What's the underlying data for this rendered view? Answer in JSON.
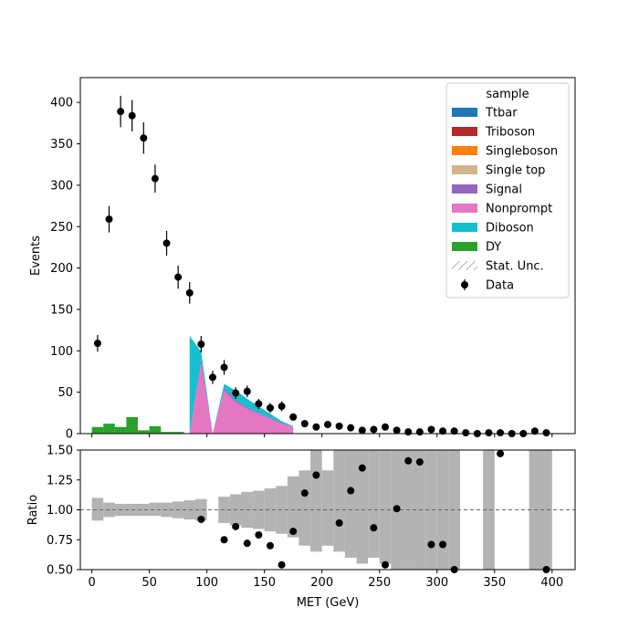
{
  "chart_data": [
    {
      "type": "bar",
      "ylabel": "Events",
      "ylim": [
        0,
        430
      ],
      "xlim": [
        -10,
        420
      ],
      "xticks": [
        0,
        50,
        100,
        150,
        200,
        250,
        300,
        350,
        400
      ],
      "yticks": [
        0,
        50,
        100,
        150,
        200,
        250,
        300,
        350,
        400
      ],
      "legend": {
        "title": "sample",
        "position": "top-right",
        "entries": [
          "Ttbar",
          "Triboson",
          "Singleboson",
          "Single top",
          "Signal",
          "Nonprompt",
          "Diboson",
          "DY",
          "Stat. Unc.",
          "Data"
        ]
      },
      "colors": {
        "Ttbar": "#1f77b4",
        "Triboson": "#b22a2a",
        "Singleboson": "#ff7f0e",
        "Single top": "#d2b48c",
        "Signal": "#9467bd",
        "Nonprompt": "#e377c2",
        "Diboson": "#17becf",
        "DY": "#2ca02c",
        "Data": "#000000",
        "Stat. Unc.": "#888888"
      },
      "dy_x": [
        5,
        15,
        25,
        35,
        45,
        55,
        65,
        75
      ],
      "dy_values": [
        8,
        12,
        8,
        20,
        4,
        9,
        2,
        2
      ],
      "stack_x": [
        85,
        95,
        105,
        115,
        125,
        135,
        145,
        155,
        165,
        175
      ],
      "stack_series": [
        {
          "name": "Nonprompt",
          "values": [
            0,
            85,
            0,
            52,
            38,
            30,
            24,
            18,
            12,
            8
          ]
        },
        {
          "name": "Signal",
          "values": [
            0,
            6,
            0,
            3,
            2,
            2,
            1,
            1,
            1,
            0
          ]
        },
        {
          "name": "Diboson",
          "values": [
            118,
            8,
            0,
            5,
            12,
            10,
            8,
            5,
            2,
            1
          ]
        }
      ],
      "data_points": {
        "x": [
          5,
          15,
          25,
          35,
          45,
          55,
          65,
          75,
          85,
          95,
          105,
          115,
          125,
          135,
          145,
          155,
          165,
          175,
          185,
          195,
          205,
          215,
          225,
          235,
          245,
          255,
          265,
          275,
          285,
          295,
          305,
          315,
          325,
          335,
          345,
          355,
          365,
          375,
          385,
          395
        ],
        "y": [
          109,
          259,
          389,
          384,
          357,
          308,
          230,
          189,
          170,
          108,
          68,
          80,
          49,
          51,
          36,
          31,
          33,
          20,
          12,
          8,
          11,
          9,
          7,
          4,
          5,
          8,
          4,
          2,
          2,
          5,
          3,
          3,
          1,
          0,
          1,
          1,
          0,
          0,
          3,
          1
        ],
        "yerr": [
          10,
          16,
          19,
          19,
          19,
          17,
          15,
          14,
          13,
          10,
          8,
          9,
          7,
          7,
          6,
          6,
          6,
          4,
          3,
          3,
          3,
          3,
          3,
          2,
          2,
          3,
          2,
          1,
          1,
          2,
          2,
          2,
          1,
          0,
          1,
          1,
          0,
          0,
          2,
          1
        ]
      }
    },
    {
      "type": "scatter",
      "xlabel": "MET (GeV)",
      "ylabel": "Ratio",
      "ylim": [
        0.5,
        1.5
      ],
      "xlim": [
        -10,
        420
      ],
      "xticks": [
        0,
        50,
        100,
        150,
        200,
        250,
        300,
        350,
        400
      ],
      "yticks": [
        0.5,
        0.75,
        1.0,
        1.25,
        1.5
      ],
      "yticklabels": [
        "0.50",
        "0.75",
        "1.00",
        "1.25",
        "1.50"
      ],
      "reference_line": 1.0,
      "unc_bins": [
        {
          "x0": 0,
          "x1": 10,
          "lo": 0.91,
          "hi": 1.1
        },
        {
          "x0": 10,
          "x1": 20,
          "lo": 0.94,
          "hi": 1.06
        },
        {
          "x0": 20,
          "x1": 30,
          "lo": 0.95,
          "hi": 1.05
        },
        {
          "x0": 30,
          "x1": 40,
          "lo": 0.95,
          "hi": 1.05
        },
        {
          "x0": 40,
          "x1": 50,
          "lo": 0.95,
          "hi": 1.05
        },
        {
          "x0": 50,
          "x1": 60,
          "lo": 0.95,
          "hi": 1.06
        },
        {
          "x0": 60,
          "x1": 70,
          "lo": 0.94,
          "hi": 1.06
        },
        {
          "x0": 70,
          "x1": 80,
          "lo": 0.93,
          "hi": 1.07
        },
        {
          "x0": 80,
          "x1": 90,
          "lo": 0.92,
          "hi": 1.08
        },
        {
          "x0": 90,
          "x1": 100,
          "lo": 0.91,
          "hi": 1.09
        },
        {
          "x0": 110,
          "x1": 120,
          "lo": 0.89,
          "hi": 1.11
        },
        {
          "x0": 120,
          "x1": 130,
          "lo": 0.87,
          "hi": 1.13
        },
        {
          "x0": 130,
          "x1": 140,
          "lo": 0.85,
          "hi": 1.15
        },
        {
          "x0": 140,
          "x1": 150,
          "lo": 0.84,
          "hi": 1.16
        },
        {
          "x0": 150,
          "x1": 160,
          "lo": 0.82,
          "hi": 1.18
        },
        {
          "x0": 160,
          "x1": 170,
          "lo": 0.8,
          "hi": 1.2
        },
        {
          "x0": 170,
          "x1": 180,
          "lo": 0.77,
          "hi": 1.28
        },
        {
          "x0": 180,
          "x1": 190,
          "lo": 0.7,
          "hi": 1.33
        },
        {
          "x0": 190,
          "x1": 200,
          "lo": 0.65,
          "hi": 1.5
        },
        {
          "x0": 200,
          "x1": 210,
          "lo": 0.7,
          "hi": 1.33
        },
        {
          "x0": 210,
          "x1": 220,
          "lo": 0.65,
          "hi": 1.5
        },
        {
          "x0": 220,
          "x1": 230,
          "lo": 0.6,
          "hi": 1.5
        },
        {
          "x0": 230,
          "x1": 240,
          "lo": 0.55,
          "hi": 1.5
        },
        {
          "x0": 240,
          "x1": 250,
          "lo": 0.6,
          "hi": 1.5
        },
        {
          "x0": 250,
          "x1": 260,
          "lo": 0.55,
          "hi": 1.5
        },
        {
          "x0": 260,
          "x1": 270,
          "lo": 0.5,
          "hi": 1.5
        },
        {
          "x0": 270,
          "x1": 280,
          "lo": 0.5,
          "hi": 1.5
        },
        {
          "x0": 280,
          "x1": 290,
          "lo": 0.5,
          "hi": 1.5
        },
        {
          "x0": 290,
          "x1": 300,
          "lo": 0.5,
          "hi": 1.5
        },
        {
          "x0": 300,
          "x1": 310,
          "lo": 0.5,
          "hi": 1.5
        },
        {
          "x0": 310,
          "x1": 320,
          "lo": 0.5,
          "hi": 1.5
        },
        {
          "x0": 340,
          "x1": 350,
          "lo": 0.5,
          "hi": 1.5
        },
        {
          "x0": 380,
          "x1": 400,
          "lo": 0.5,
          "hi": 1.5
        }
      ],
      "ratio_points": {
        "x": [
          95,
          115,
          125,
          135,
          145,
          155,
          165,
          175,
          185,
          195,
          215,
          225,
          235,
          245,
          255,
          265,
          275,
          285,
          295,
          305,
          315,
          355,
          395
        ],
        "y": [
          0.92,
          0.75,
          0.86,
          0.72,
          0.79,
          0.7,
          0.54,
          0.82,
          1.14,
          1.29,
          0.89,
          1.16,
          1.35,
          0.85,
          0.54,
          1.01,
          1.41,
          1.4,
          0.71,
          0.71,
          0.5,
          1.47,
          0.5
        ]
      }
    }
  ]
}
